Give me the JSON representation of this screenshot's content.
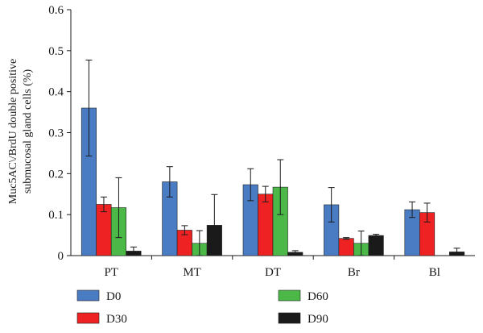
{
  "chart_data": {
    "type": "bar",
    "title": "",
    "xlabel": "",
    "ylabel": "Muc5AC\\/BrdU double positive",
    "ylabel_line2": "submucosal gland cells (%)",
    "categories": [
      "PT",
      "MT",
      "DT",
      "Br",
      "Bl"
    ],
    "ylim": [
      0,
      0.6
    ],
    "yticks": [
      "0",
      "0.1",
      "0.2",
      "0.3",
      "0.4",
      "0.5",
      "0.6"
    ],
    "grid": false,
    "legend_position": "bottom",
    "series": [
      {
        "name": "D0",
        "color": "#4a7cc4",
        "values": [
          0.36,
          0.18,
          0.173,
          0.124,
          0.112
        ],
        "errors": [
          0.117,
          0.037,
          0.039,
          0.042,
          0.019
        ]
      },
      {
        "name": "D30",
        "color": "#ee2222",
        "values": [
          0.125,
          0.062,
          0.15,
          0.042,
          0.105
        ],
        "errors": [
          0.018,
          0.011,
          0.019,
          0.002,
          0.023
        ]
      },
      {
        "name": "D60",
        "color": "#4bb848",
        "values": [
          0.117,
          0.03,
          0.167,
          0.03,
          0
        ],
        "errors": [
          0.073,
          0.031,
          0.067,
          0.03,
          0
        ]
      },
      {
        "name": "D90",
        "color": "#1a1a1a",
        "values": [
          0.011,
          0.074,
          0.008,
          0.049,
          0.009
        ],
        "errors": [
          0.01,
          0.075,
          0.004,
          0.003,
          0.009
        ]
      }
    ]
  }
}
